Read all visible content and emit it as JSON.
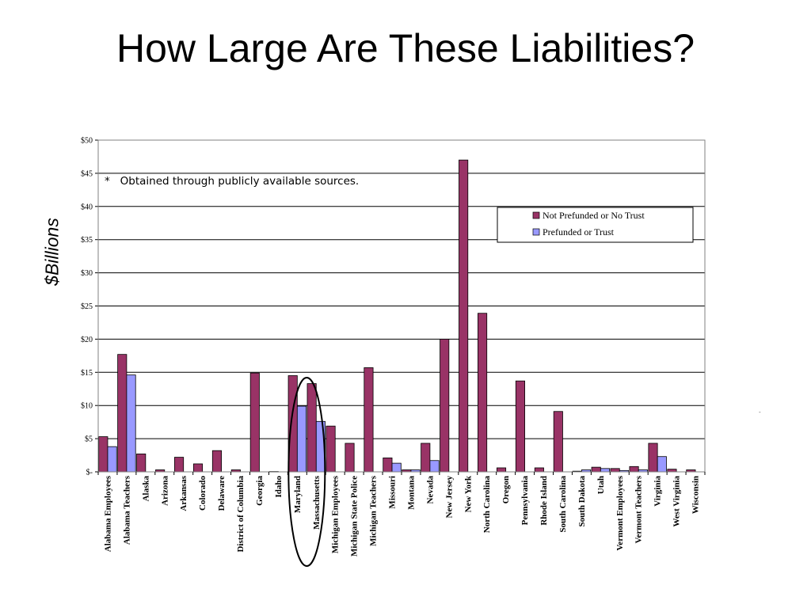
{
  "slide": {
    "title": "How Large Are These Liabilities?",
    "y_unit": "$Billions",
    "footnote": "*   Obtained through publicly available sources.",
    "stray_mark": "-"
  },
  "colors": {
    "not_prefunded": "#993366",
    "prefunded": "#9999ff",
    "highlight_ellipse": "#000000"
  },
  "chart_data": {
    "type": "bar",
    "ylim": [
      0,
      50
    ],
    "yticks": [
      0,
      5,
      10,
      15,
      20,
      25,
      30,
      35,
      40,
      45,
      50
    ],
    "ytick_labels": [
      "$-",
      "$5",
      "$10",
      "$15",
      "$20",
      "$25",
      "$30",
      "$35",
      "$40",
      "$45",
      "$50"
    ],
    "grid": true,
    "legend_position": "top-right",
    "categories": [
      "Alabama Employees",
      "Alabama Teachers",
      "Alaska",
      "Arizona",
      "Arkansas",
      "Colorado",
      "Delaware",
      "District of Columbia",
      "Georgia",
      "Idaho",
      "Maryland",
      "Massachusetts",
      "Michigan Employees",
      "Michigan State Police",
      "Michigan Teachers",
      "Missouri",
      "Montana",
      "Nevada",
      "New Jersey",
      "New York",
      "North Carolina",
      "Oregon",
      "Pennsylvania",
      "Rhode Island",
      "South Carolina",
      "South Dakota",
      "Utah",
      "Vermont Employees",
      "Vermont Teachers",
      "Virginia",
      "West Virginia",
      "Wisconsin"
    ],
    "series": [
      {
        "name": "Not Prefunded or No Trust",
        "values": [
          5.3,
          17.7,
          2.7,
          0.3,
          2.2,
          1.2,
          3.2,
          0.3,
          14.9,
          0.05,
          14.5,
          13.3,
          6.9,
          4.3,
          15.7,
          2.1,
          0.3,
          4.3,
          20.0,
          47.0,
          23.9,
          0.6,
          13.7,
          0.6,
          9.1,
          0.1,
          0.7,
          0.5,
          0.8,
          4.3,
          0.4,
          0.3
        ]
      },
      {
        "name": "Prefunded or Trust",
        "values": [
          3.8,
          14.6,
          0,
          0,
          0,
          0,
          0,
          0,
          0,
          0,
          9.9,
          7.6,
          0,
          0,
          0,
          1.3,
          0.3,
          1.7,
          0,
          0,
          0,
          0,
          0,
          0,
          0,
          0.3,
          0.5,
          0.2,
          0.3,
          2.3,
          0,
          0
        ]
      }
    ],
    "highlight": [
      "Maryland",
      "Massachusetts"
    ]
  }
}
